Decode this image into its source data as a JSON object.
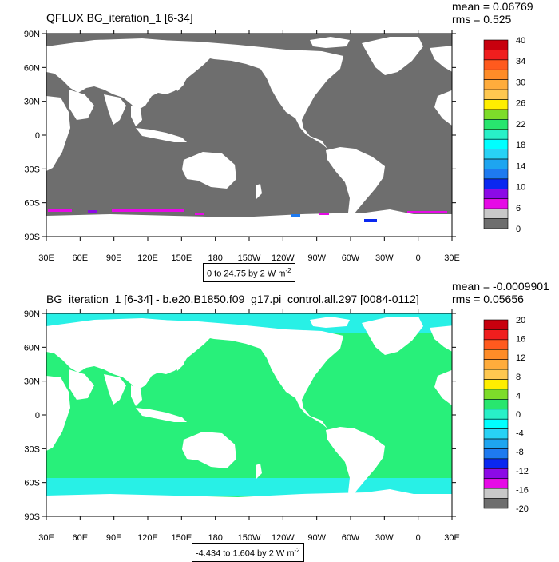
{
  "top": {
    "title": "QFLUX BG_iteration_1 [6-34]",
    "mean": "mean = 0.06769",
    "rms": "rms = 0.525",
    "units_text": "0 to 24.75 by 2  W m",
    "units_exp": "-2",
    "colorbar_labels": [
      "40",
      "34",
      "30",
      "26",
      "22",
      "18",
      "14",
      "10",
      "6",
      "0"
    ],
    "colorbar_colors": [
      "#c8000e",
      "#f01e1e",
      "#ff5a1e",
      "#ff8c28",
      "#ffac3c",
      "#ffc850",
      "#ffee00",
      "#7ddc2a",
      "#28e66e",
      "#28f0c8",
      "#00ffff",
      "#28d2f5",
      "#1ea5f0",
      "#1e7af0",
      "#0a28f0",
      "#8c0ae6",
      "#e60ae6",
      "#c8c8c8",
      "#6e6e6e"
    ],
    "ocean_color": "#6e6e6e"
  },
  "bottom": {
    "title": "BG_iteration_1 [6-34] - b.e20.B1850.f09_g17.pi_control.all.297 [0084-0112]",
    "mean": "mean = -0.0009901",
    "rms": "rms = 0.05656",
    "units_text": "-4.434 to 1.604 by 2  W m",
    "units_exp": "-2",
    "colorbar_labels": [
      "20",
      "16",
      "12",
      "8",
      "4",
      "0",
      "-4",
      "-8",
      "-12",
      "-16",
      "-20"
    ],
    "colorbar_colors": [
      "#c8000e",
      "#f01e1e",
      "#ff5a1e",
      "#ff8c28",
      "#ffac3c",
      "#ffc850",
      "#ffee00",
      "#7ddc2a",
      "#28e66e",
      "#28f0c8",
      "#00ffff",
      "#28d2f5",
      "#1ea5f0",
      "#1e7af0",
      "#0a28f0",
      "#8c0ae6",
      "#e60ae6",
      "#c8c8c8",
      "#6e6e6e"
    ],
    "ocean_color": "#28f07a",
    "ice_color": "#28f0e6"
  },
  "lat_labels": [
    "90N",
    "60N",
    "30N",
    "0",
    "30S",
    "60S",
    "90S"
  ],
  "lon_labels": [
    "30E",
    "60E",
    "90E",
    "120E",
    "150E",
    "180",
    "150W",
    "120W",
    "90W",
    "60W",
    "30W",
    "0",
    "30E"
  ],
  "land_color": "#ffffff"
}
